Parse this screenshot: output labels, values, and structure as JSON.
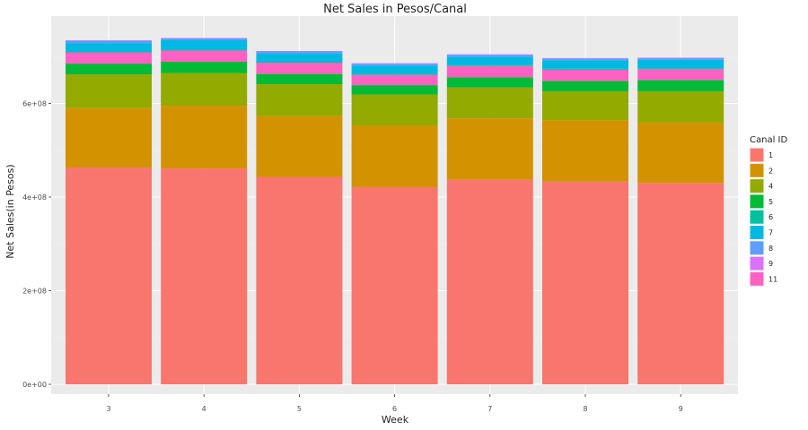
{
  "chart_data": {
    "type": "bar",
    "stacked": true,
    "title": "Net Sales in Pesos/Canal",
    "xlabel": "Week",
    "ylabel": "Net Sales(in Pesos)",
    "ylim": [
      0,
      790000000
    ],
    "yticks": [
      0,
      200000000,
      400000000,
      600000000
    ],
    "ytick_labels": [
      "0e+00",
      "2e+08",
      "4e+08",
      "6e+08"
    ],
    "categories": [
      "3",
      "4",
      "5",
      "6",
      "7",
      "8",
      "9"
    ],
    "legend": {
      "title": "Canal ID",
      "position": "right"
    },
    "grid": true,
    "series": [
      {
        "name": "1",
        "color": "#F8766D",
        "values": [
          463000000,
          461000000,
          443000000,
          421000000,
          437000000,
          433000000,
          430000000
        ]
      },
      {
        "name": "2",
        "color": "#D39200",
        "values": [
          127000000,
          134000000,
          130000000,
          132000000,
          131000000,
          131000000,
          129000000
        ]
      },
      {
        "name": "4",
        "color": "#93AA00",
        "values": [
          72000000,
          70000000,
          68000000,
          66000000,
          66000000,
          62000000,
          67000000
        ]
      },
      {
        "name": "5",
        "color": "#00BA38",
        "values": [
          23000000,
          24000000,
          22000000,
          20000000,
          22000000,
          22000000,
          24000000
        ]
      },
      {
        "name": "6",
        "color": "#00C19F",
        "values": [
          2000000,
          2000000,
          2000000,
          2000000,
          2000000,
          2000000,
          2000000
        ]
      },
      {
        "name": "7",
        "color": "#00B9E3",
        "values": [
          18000000,
          20000000,
          18000000,
          18000000,
          18000000,
          18000000,
          18000000
        ]
      },
      {
        "name": "8",
        "color": "#619CFF",
        "values": [
          5000000,
          4000000,
          4000000,
          4000000,
          4000000,
          4000000,
          4000000
        ]
      },
      {
        "name": "9",
        "color": "#DB72FB",
        "values": [
          1000000,
          1000000,
          1000000,
          1000000,
          1000000,
          1000000,
          1000000
        ]
      },
      {
        "name": "11",
        "color": "#FF61C3",
        "values": [
          24000000,
          24000000,
          24000000,
          22000000,
          24000000,
          24000000,
          23000000
        ]
      }
    ],
    "stack_order_bottom_to_top": [
      "1",
      "2",
      "4",
      "5",
      "11",
      "6",
      "7",
      "8",
      "9"
    ]
  },
  "colors": {
    "panel_background": "#EBEBEB",
    "grid_major": "#FFFFFF",
    "grid_minor": "#F2F2F2"
  }
}
